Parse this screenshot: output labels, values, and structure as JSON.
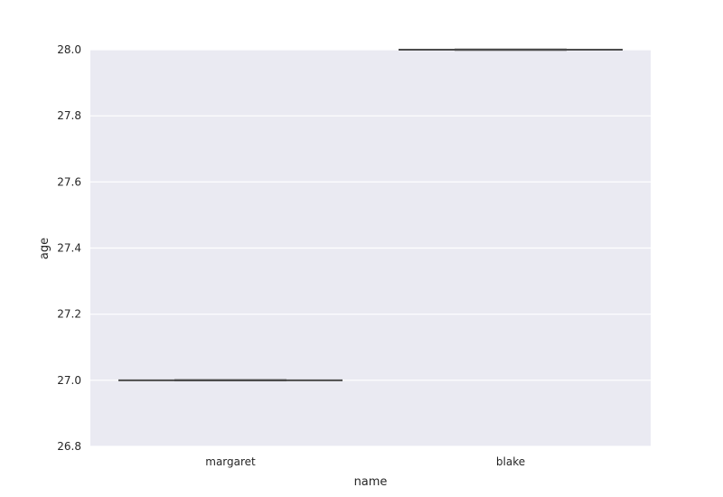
{
  "chart_data": {
    "type": "box",
    "xlabel": "name",
    "ylabel": "age",
    "categories": [
      "margaret",
      "blake"
    ],
    "values": [
      27.0,
      28.0
    ],
    "ylim": [
      26.8,
      28.0
    ],
    "yticks": [
      "26.8",
      "27.0",
      "27.2",
      "27.4",
      "27.6",
      "27.8",
      "28.0"
    ],
    "grid": true,
    "style": {
      "plot_background": "#eaeaf2",
      "grid_color": "#ffffff",
      "box_line_color": "#4c4c4c",
      "text_color": "#262626"
    }
  }
}
